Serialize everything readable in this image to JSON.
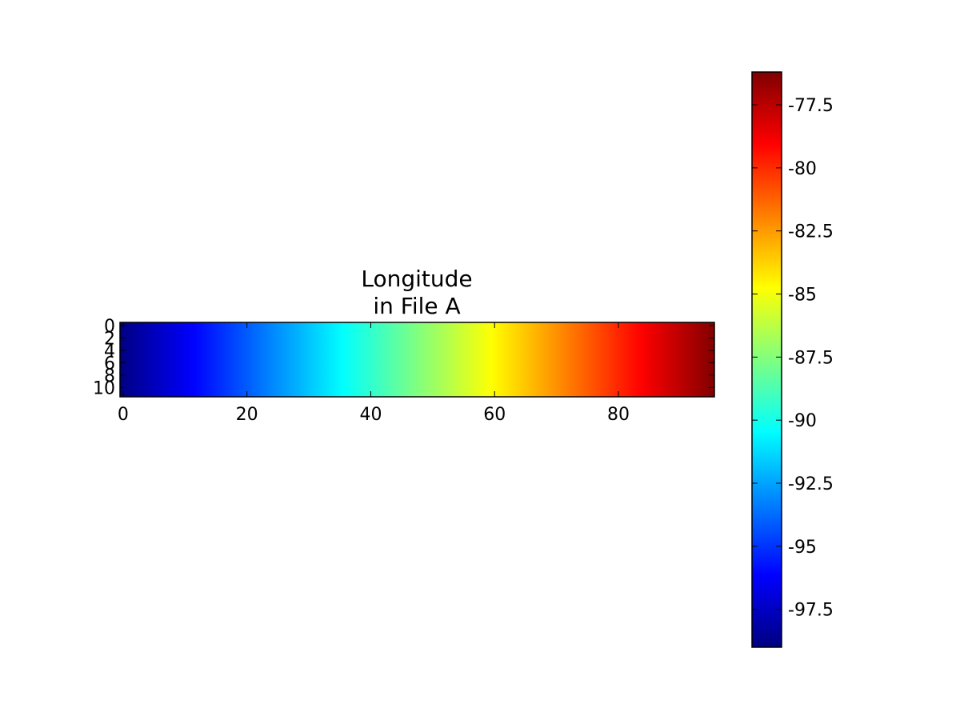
{
  "chart_data": {
    "type": "heatmap",
    "title_lines": [
      "Longitude",
      "in File A"
    ],
    "xlabel": "",
    "ylabel": "",
    "colormap": "jet",
    "x_extent": [
      -0.5,
      95.5
    ],
    "y_extent": [
      -0.5,
      11.5
    ],
    "y_inverted": true,
    "x_ticks": [
      0,
      20,
      40,
      60,
      80
    ],
    "x_tick_labels": [
      "0",
      "20",
      "40",
      "60",
      "80"
    ],
    "y_ticks": [
      0,
      2,
      4,
      6,
      8,
      10
    ],
    "y_tick_labels": [
      "0",
      "2",
      "4",
      "6",
      "8",
      "10"
    ],
    "columns": 96,
    "rows": 12,
    "value_range": [
      -99.0,
      -76.2
    ],
    "longitude_by_column": {
      "first": -98.95,
      "last": -76.25
    },
    "colorbar": {
      "vmin": -99.0,
      "vmax": -76.2,
      "ticks": [
        -97.5,
        -95,
        -92.5,
        -90,
        -87.5,
        -85,
        -82.5,
        -80,
        -77.5
      ],
      "tick_labels": [
        "-97.5",
        "-95",
        "-92.5",
        "-90",
        "-87.5",
        "-85",
        "-82.5",
        "-80",
        "-77.5"
      ]
    }
  }
}
